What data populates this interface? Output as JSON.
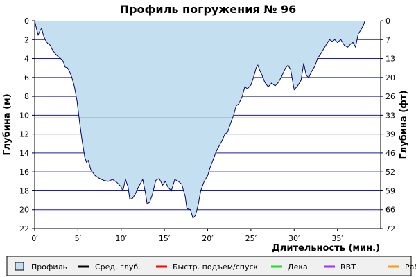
{
  "chart_data": {
    "type": "area",
    "title": "Профиль погружения № 96",
    "xlabel": "Длительность (мин.)",
    "ylabel_left": "Глубина (м)",
    "ylabel_right": "Глубина (фт)",
    "xlim": [
      0,
      40
    ],
    "ylim_m": [
      0,
      22
    ],
    "x_ticks": [
      0,
      5,
      10,
      15,
      20,
      25,
      30,
      35
    ],
    "x_tick_labels": [
      "0′",
      "5′",
      "10′",
      "15′",
      "20′",
      "25′",
      "30′",
      "35′"
    ],
    "y_ticks_m": [
      0,
      2,
      4,
      6,
      8,
      10,
      12,
      14,
      16,
      18,
      20,
      22
    ],
    "y_tick_labels_m": [
      "0",
      "2",
      "4",
      "6",
      "8",
      "10",
      "12",
      "14",
      "16",
      "18",
      "20",
      "22"
    ],
    "y_tick_labels_ft": [
      "0",
      "7",
      "13",
      "20",
      "26",
      "33",
      "39",
      "46",
      "52",
      "59",
      "66",
      "72"
    ],
    "avg_depth_m": 10.3,
    "grid": true,
    "colors": {
      "fill": "#c4dff0",
      "line": "#000060",
      "grid": "#1c1cb0",
      "avg": "#000000",
      "fast": "#ff0000",
      "deco": "#22dd22",
      "rbt": "#9933ff",
      "work": "#ff9900"
    },
    "series": [
      {
        "name": "Профиль",
        "points": [
          [
            0.0,
            0.0
          ],
          [
            0.2,
            0.8
          ],
          [
            0.4,
            1.5
          ],
          [
            0.6,
            1.1
          ],
          [
            0.8,
            0.8
          ],
          [
            1.0,
            1.5
          ],
          [
            1.2,
            2.0
          ],
          [
            1.5,
            2.4
          ],
          [
            1.8,
            2.6
          ],
          [
            2.0,
            3.0
          ],
          [
            2.3,
            3.4
          ],
          [
            2.6,
            3.7
          ],
          [
            3.0,
            4.0
          ],
          [
            3.3,
            4.3
          ],
          [
            3.5,
            4.9
          ],
          [
            3.8,
            5.0
          ],
          [
            4.0,
            5.3
          ],
          [
            4.3,
            6.0
          ],
          [
            4.6,
            7.0
          ],
          [
            4.9,
            8.5
          ],
          [
            5.2,
            10.8
          ],
          [
            5.5,
            12.8
          ],
          [
            5.8,
            14.5
          ],
          [
            6.0,
            15.0
          ],
          [
            6.2,
            14.8
          ],
          [
            6.5,
            15.8
          ],
          [
            7.0,
            16.4
          ],
          [
            7.5,
            16.7
          ],
          [
            8.0,
            16.9
          ],
          [
            8.5,
            17.0
          ],
          [
            9.0,
            16.8
          ],
          [
            9.5,
            17.1
          ],
          [
            10.0,
            17.6
          ],
          [
            10.2,
            18.0
          ],
          [
            10.5,
            16.8
          ],
          [
            10.8,
            17.6
          ],
          [
            11.0,
            18.9
          ],
          [
            11.3,
            18.8
          ],
          [
            11.6,
            18.4
          ],
          [
            12.0,
            17.6
          ],
          [
            12.5,
            16.8
          ],
          [
            12.8,
            18.2
          ],
          [
            13.0,
            19.4
          ],
          [
            13.3,
            19.2
          ],
          [
            13.6,
            18.4
          ],
          [
            14.0,
            16.9
          ],
          [
            14.4,
            16.7
          ],
          [
            14.8,
            17.4
          ],
          [
            15.1,
            17.0
          ],
          [
            15.4,
            17.6
          ],
          [
            15.8,
            18.0
          ],
          [
            16.2,
            16.8
          ],
          [
            16.6,
            17.0
          ],
          [
            17.0,
            17.3
          ],
          [
            17.4,
            18.6
          ],
          [
            17.6,
            19.9
          ],
          [
            18.0,
            20.0
          ],
          [
            18.3,
            20.9
          ],
          [
            18.6,
            20.6
          ],
          [
            18.9,
            19.5
          ],
          [
            19.2,
            18.0
          ],
          [
            19.6,
            17.0
          ],
          [
            20.0,
            16.4
          ],
          [
            20.3,
            15.5
          ],
          [
            20.6,
            14.8
          ],
          [
            21.0,
            13.8
          ],
          [
            21.3,
            13.3
          ],
          [
            21.6,
            12.8
          ],
          [
            22.0,
            12.0
          ],
          [
            22.3,
            11.8
          ],
          [
            22.6,
            11.0
          ],
          [
            23.0,
            10.0
          ],
          [
            23.3,
            9.0
          ],
          [
            23.6,
            8.8
          ],
          [
            24.0,
            8.0
          ],
          [
            24.3,
            7.0
          ],
          [
            24.6,
            7.2
          ],
          [
            25.0,
            6.8
          ],
          [
            25.3,
            6.0
          ],
          [
            25.6,
            5.0
          ],
          [
            25.8,
            4.7
          ],
          [
            26.0,
            5.2
          ],
          [
            26.3,
            5.8
          ],
          [
            26.6,
            6.5
          ],
          [
            27.0,
            7.0
          ],
          [
            27.4,
            6.6
          ],
          [
            27.8,
            6.9
          ],
          [
            28.2,
            6.5
          ],
          [
            28.6,
            5.8
          ],
          [
            29.0,
            5.0
          ],
          [
            29.3,
            4.7
          ],
          [
            29.6,
            5.2
          ],
          [
            29.9,
            6.8
          ],
          [
            30.0,
            7.3
          ],
          [
            30.4,
            6.9
          ],
          [
            30.8,
            6.3
          ],
          [
            31.1,
            4.5
          ],
          [
            31.4,
            5.8
          ],
          [
            31.7,
            6.0
          ],
          [
            32.0,
            5.4
          ],
          [
            32.4,
            4.8
          ],
          [
            32.7,
            4.0
          ],
          [
            33.0,
            3.6
          ],
          [
            33.4,
            3.0
          ],
          [
            33.8,
            2.4
          ],
          [
            34.1,
            2.0
          ],
          [
            34.4,
            2.2
          ],
          [
            34.7,
            2.0
          ],
          [
            35.0,
            2.3
          ],
          [
            35.4,
            2.0
          ],
          [
            35.8,
            2.6
          ],
          [
            36.2,
            2.8
          ],
          [
            36.5,
            2.5
          ],
          [
            36.8,
            2.3
          ],
          [
            37.1,
            2.8
          ],
          [
            37.4,
            1.4
          ],
          [
            37.7,
            1.0
          ],
          [
            38.0,
            0.5
          ],
          [
            38.2,
            0.0
          ]
        ]
      }
    ],
    "legend": {
      "placement": "bottom",
      "items": [
        {
          "label": "Профиль",
          "kind": "box",
          "color": "#c4dff0"
        },
        {
          "label": "Сред. глуб.",
          "kind": "line",
          "color": "#000000"
        },
        {
          "label": "Быстр. подъем/спуск",
          "kind": "line",
          "color": "#ff0000"
        },
        {
          "label": "Дека",
          "kind": "line",
          "color": "#22dd22"
        },
        {
          "label": "RBT",
          "kind": "line",
          "color": "#9933ff"
        },
        {
          "label": "Раб.",
          "kind": "line",
          "color": "#ff9900"
        }
      ]
    }
  }
}
